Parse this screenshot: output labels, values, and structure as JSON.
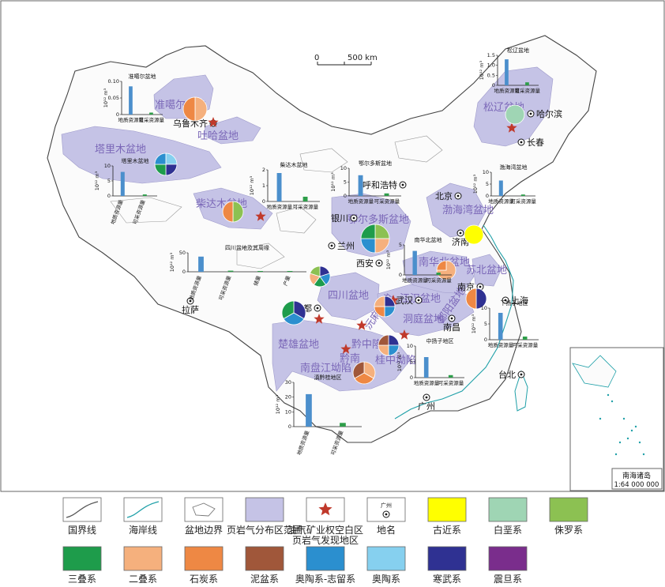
{
  "scale_bar": {
    "zero": "0",
    "label": "500 km"
  },
  "inset": {
    "title": "南海诸岛",
    "scale": "1:64 000 000"
  },
  "units_label": "10¹² m³",
  "basins": [
    {
      "id": "junggar",
      "name": "准噶尔盆地"
    },
    {
      "id": "turpan",
      "name": "吐哈盆地"
    },
    {
      "id": "tarim",
      "name": "塔里木盆地"
    },
    {
      "id": "qaidam",
      "name": "柴达木盆地"
    },
    {
      "id": "ordos",
      "name": "鄂尔多斯盆地"
    },
    {
      "id": "bohai",
      "name": "渤海湾盆地"
    },
    {
      "id": "songliao",
      "name": "松辽盆地"
    },
    {
      "id": "nanhuabei",
      "name": "南华北盆地"
    },
    {
      "id": "subei",
      "name": "苏北盆地"
    },
    {
      "id": "sichuan",
      "name": "四川盆地"
    },
    {
      "id": "jianghan",
      "name": "江汉盆地"
    },
    {
      "id": "dongting",
      "name": "洞庭盆地"
    },
    {
      "id": "chuxiong",
      "name": "楚雄盆地"
    },
    {
      "id": "nanpan",
      "name": "南盘江坳陷"
    },
    {
      "id": "yuanma",
      "name": "沅麻盆地"
    },
    {
      "id": "qianzhong",
      "name": "黔中隆起"
    },
    {
      "id": "qiannan",
      "name": "黔南"
    },
    {
      "id": "guizhong",
      "name": "桂中坳陷"
    },
    {
      "id": "poyang",
      "name": "鄱阳盆地"
    }
  ],
  "cities": [
    "乌鲁木齐",
    "哈尔滨",
    "长春",
    "呼和浩特",
    "北京",
    "银川",
    "兰州",
    "西安",
    "济南",
    "南京",
    "上海",
    "武汉",
    "成都",
    "南昌",
    "拉萨",
    "广州",
    "台北"
  ],
  "charts": [
    {
      "id": "junggar",
      "title": "准噶尔盆地",
      "ymax": "0.10",
      "ticks": [
        "0.10",
        "0.05",
        "0"
      ],
      "values": [
        0.085,
        0.006
      ],
      "cats": [
        "地质资源量",
        "可采资源量"
      ]
    },
    {
      "id": "tarim",
      "title": "塔里木盆地",
      "ymax": "10",
      "ticks": [
        "10",
        "5",
        "0"
      ],
      "values": [
        8,
        0.5
      ],
      "cats": [
        "地质资源量",
        "可采资源量"
      ]
    },
    {
      "id": "qaidam",
      "title": "柴达木盆地",
      "ymax": "2",
      "ticks": [
        "2",
        "1",
        "0"
      ],
      "values": [
        1.8,
        0.3
      ],
      "cats": [
        "地质资源量",
        "可采资源量"
      ]
    },
    {
      "id": "ordos",
      "title": "鄂尔多斯盆地",
      "ymax": "10",
      "ticks": [
        "10",
        "5",
        "0"
      ],
      "values": [
        7.5,
        0.9
      ],
      "cats": [
        "地质资源量",
        "可采资源量"
      ]
    },
    {
      "id": "songliao",
      "title": "松辽盆地",
      "ymax": "1.5",
      "ticks": [
        "1.5",
        "1.0",
        "0.5",
        "0"
      ],
      "values": [
        1.3,
        0.15
      ],
      "cats": [
        "地质资源量",
        "可采资源量"
      ]
    },
    {
      "id": "bohai",
      "title": "渤海湾盆地",
      "ymax": "10",
      "ticks": [
        "10",
        "5",
        "0"
      ],
      "values": [
        6.5,
        0.6
      ],
      "cats": [
        "地质资源量",
        "可采资源量"
      ]
    },
    {
      "id": "nanhuabei",
      "title": "南华北盆地",
      "ymax": "5",
      "ticks": [
        "5",
        "0"
      ],
      "values": [
        4,
        0.4
      ],
      "cats": [
        "地质资源量",
        "可采资源量"
      ]
    },
    {
      "id": "sichuan",
      "title": "四川盆地及其周缘",
      "ymax": "50",
      "ticks": [
        "50",
        "0"
      ],
      "values": [
        40,
        3,
        1,
        0.5
      ],
      "cats": [
        "地质资源量",
        "可采资源量",
        "储量",
        "产量"
      ]
    },
    {
      "id": "yangzi_lower",
      "title": "下扬子地区",
      "ymax": "10",
      "ticks": [
        "10",
        "5",
        "0"
      ],
      "values": [
        8.5,
        1
      ],
      "cats": [
        "地质资源量",
        "可采资源量"
      ]
    },
    {
      "id": "yangzi_mid",
      "title": "中扬子地区",
      "ymax": "10",
      "ticks": [
        "10",
        "5",
        "0"
      ],
      "values": [
        6.5,
        0.8
      ],
      "cats": [
        "地质资源量",
        "可采资源量"
      ]
    },
    {
      "id": "dianqiangui",
      "title": "滇黔桂地区",
      "ymax": "30",
      "ticks": [
        "30",
        "20",
        "10",
        "0"
      ],
      "values": [
        22,
        2.5
      ],
      "cats": [
        "地质资源量",
        "可采资源量"
      ]
    }
  ],
  "legend": {
    "row1": [
      {
        "label": "国界线",
        "kind": "line",
        "color": "#555555"
      },
      {
        "label": "海岸线",
        "kind": "line",
        "color": "#1fa0a8"
      },
      {
        "label": "盆地边界",
        "kind": "outline",
        "color": "#777777"
      },
      {
        "label": "页岩气分布区范围",
        "kind": "fill",
        "color": "#c5c3e6"
      },
      {
        "label": "油气矿业权空白区页岩气发现地区",
        "kind": "star",
        "color": "#c0392b"
      },
      {
        "label": "地名",
        "kind": "city",
        "color": "#111111"
      },
      {
        "label": "古近系",
        "kind": "fill",
        "color": "#ffff00"
      },
      {
        "label": "白垩系",
        "kind": "fill",
        "color": "#9fd5b4"
      },
      {
        "label": "侏罗系",
        "kind": "fill",
        "color": "#8cc152"
      }
    ],
    "row2": [
      {
        "label": "三叠系",
        "kind": "fill",
        "color": "#1e9c4b"
      },
      {
        "label": "二叠系",
        "kind": "fill",
        "color": "#f5b07d"
      },
      {
        "label": "石炭系",
        "kind": "fill",
        "color": "#ee8844"
      },
      {
        "label": "泥盆系",
        "kind": "fill",
        "color": "#a0573a"
      },
      {
        "label": "奥陶系-志留系",
        "kind": "fill",
        "color": "#2b8fcf"
      },
      {
        "label": "奥陶系",
        "kind": "fill",
        "color": "#86d0ef"
      },
      {
        "label": "寒武系",
        "kind": "fill",
        "color": "#2f3192"
      },
      {
        "label": "震旦系",
        "kind": "fill",
        "color": "#7a2d8c"
      }
    ],
    "city_sample": "广州"
  }
}
